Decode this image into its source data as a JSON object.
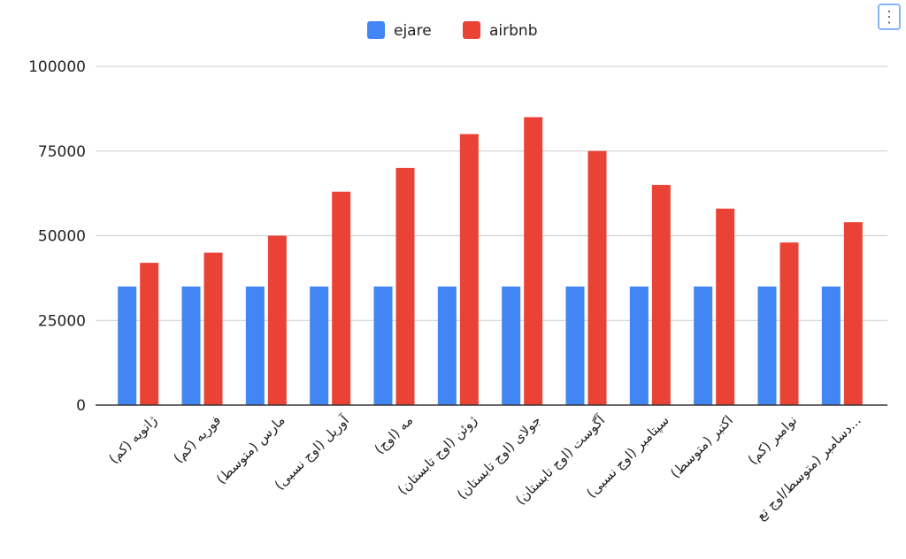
{
  "chart_data": {
    "type": "bar",
    "title": "",
    "xlabel": "",
    "ylabel": "",
    "ylim": [
      0,
      100000
    ],
    "yticks": [
      "0",
      "25000",
      "50000",
      "75000",
      "100000"
    ],
    "ytick_values": [
      0,
      25000,
      50000,
      75000,
      100000
    ],
    "grid": true,
    "legend_position": "top",
    "categories": [
      "ژانویه (کم)",
      "فوریه (کم)",
      "مارس (متوسط)",
      "آوریل (اوج نسبی)",
      "مه (اوج)",
      "ژوئن (اوج تابستان)",
      "جولای (اوج تابستان)",
      "آگوست (اوج تابستان)",
      "سپتامبر (اوج نسبی)",
      "اکتبر (متوسط)",
      "نوامبر (کم)",
      "دسامبر (متوسط/اوج تع..."
    ],
    "series": [
      {
        "name": "ejare",
        "color": "#4285f4",
        "values": [
          35000,
          35000,
          35000,
          35000,
          35000,
          35000,
          35000,
          35000,
          35000,
          35000,
          35000,
          35000
        ]
      },
      {
        "name": "airbnb",
        "color": "#ea4335",
        "values": [
          42000,
          45000,
          50000,
          63000,
          70000,
          80000,
          85000,
          75000,
          65000,
          58000,
          48000,
          54000
        ]
      }
    ]
  },
  "menu_icon": "more-vert-icon"
}
